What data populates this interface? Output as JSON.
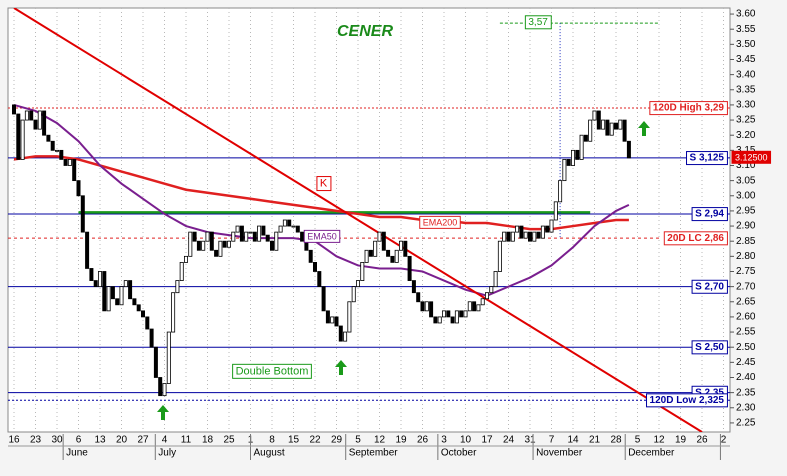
{
  "chart_data": {
    "type": "candlestick",
    "title": "CENER",
    "categories": [
      "16",
      null,
      null,
      null,
      null,
      "23",
      null,
      null,
      null,
      null,
      "30",
      null,
      null,
      null,
      null,
      "6",
      null,
      null,
      null,
      null,
      "13",
      null,
      null,
      null,
      null,
      "20",
      null,
      null,
      null,
      null,
      "27",
      null,
      null,
      null,
      null,
      "4",
      null,
      null,
      null,
      null,
      "11",
      null,
      null,
      null,
      null,
      "18",
      null,
      null,
      null,
      null,
      "25",
      null,
      null,
      null,
      null,
      "1",
      null,
      null,
      null,
      null,
      "8",
      null,
      null,
      null,
      null,
      "15",
      null,
      null,
      null,
      null,
      "22",
      null,
      null,
      null,
      null,
      "29",
      null,
      null,
      null,
      null,
      "5",
      null,
      null,
      null,
      null,
      "12",
      null,
      null,
      null,
      null,
      "19",
      null,
      null,
      null,
      null,
      "26",
      null,
      null,
      null,
      null,
      "3",
      null,
      null,
      null,
      null,
      "10",
      null,
      null,
      null,
      null,
      "17",
      null,
      null,
      null,
      null,
      "24",
      null,
      null,
      null,
      null,
      "31",
      null,
      null,
      null,
      null,
      "7",
      null,
      null,
      null,
      null,
      "14",
      null,
      null,
      null,
      null,
      "21",
      null,
      null,
      null,
      null,
      "28",
      null,
      null,
      null,
      null,
      "5",
      null,
      null,
      null,
      null,
      "12",
      null,
      null,
      null,
      null,
      "19",
      null,
      null,
      null,
      null,
      "26",
      null,
      null,
      null,
      null,
      "2",
      null,
      null,
      null,
      null
    ],
    "months": [
      "June",
      "July",
      "August",
      "September",
      "October",
      "November",
      "December"
    ],
    "open": [
      3.3,
      3.27,
      3.12,
      3.25,
      3.28,
      3.25,
      3.22,
      3.28,
      3.2,
      3.18,
      3.15,
      3.15,
      3.12,
      3.1,
      3.12,
      3.05,
      3.0,
      2.88,
      2.76,
      2.72,
      2.7,
      2.75,
      2.62,
      2.7,
      2.66,
      2.64,
      2.7,
      2.72,
      2.66,
      2.64,
      2.62,
      2.6,
      2.56,
      2.5,
      2.4,
      2.34,
      2.38,
      2.55,
      2.68,
      2.72,
      2.78,
      2.8,
      2.88,
      2.85,
      2.82,
      2.85,
      2.88,
      2.82,
      2.8,
      2.85,
      2.83,
      2.85,
      2.88,
      2.9,
      2.85,
      2.88,
      2.88,
      2.85,
      2.9,
      2.87,
      2.85,
      2.82,
      2.88,
      2.9,
      2.92,
      2.9,
      2.9,
      2.88,
      2.85,
      2.82,
      2.78,
      2.75,
      2.7,
      2.62,
      2.58,
      2.6,
      2.57,
      2.52,
      2.55,
      2.65,
      2.7,
      2.72,
      2.78,
      2.82,
      2.8,
      2.85,
      2.88,
      2.82,
      2.8,
      2.78,
      2.82,
      2.85,
      2.8,
      2.72,
      2.68,
      2.65,
      2.62,
      2.65,
      2.6,
      2.58,
      2.6,
      2.62,
      2.6,
      2.58,
      2.62,
      2.6,
      2.62,
      2.65,
      2.62,
      2.64,
      2.66,
      2.68,
      2.7,
      2.75,
      2.85,
      2.88,
      2.85,
      2.88,
      2.9,
      2.86,
      2.88,
      2.85,
      2.88,
      2.86,
      2.9,
      2.88,
      2.92,
      2.98,
      3.05,
      3.12,
      3.1,
      3.15,
      3.12,
      3.2,
      3.18,
      3.25,
      3.28,
      3.22,
      3.25,
      3.2,
      3.24,
      3.22,
      3.25,
      3.18,
      null,
      null,
      null,
      null,
      null,
      null,
      null,
      null,
      null,
      null,
      null,
      null,
      null,
      null,
      null,
      null,
      null,
      null,
      null,
      null,
      null,
      null,
      null,
      null,
      null,
      null
    ],
    "close": [
      3.27,
      3.12,
      3.25,
      3.28,
      3.25,
      3.22,
      3.28,
      3.2,
      3.18,
      3.15,
      3.15,
      3.12,
      3.1,
      3.12,
      3.05,
      3.0,
      2.88,
      2.76,
      2.72,
      2.7,
      2.75,
      2.62,
      2.7,
      2.66,
      2.64,
      2.7,
      2.72,
      2.66,
      2.64,
      2.62,
      2.6,
      2.56,
      2.5,
      2.4,
      2.34,
      2.38,
      2.55,
      2.68,
      2.72,
      2.78,
      2.8,
      2.88,
      2.85,
      2.82,
      2.85,
      2.88,
      2.82,
      2.8,
      2.85,
      2.83,
      2.85,
      2.88,
      2.9,
      2.85,
      2.88,
      2.88,
      2.85,
      2.9,
      2.87,
      2.85,
      2.82,
      2.88,
      2.9,
      2.92,
      2.9,
      2.9,
      2.88,
      2.85,
      2.82,
      2.78,
      2.75,
      2.7,
      2.62,
      2.58,
      2.6,
      2.57,
      2.52,
      2.55,
      2.65,
      2.7,
      2.72,
      2.78,
      2.82,
      2.8,
      2.85,
      2.88,
      2.82,
      2.8,
      2.78,
      2.82,
      2.85,
      2.8,
      2.72,
      2.68,
      2.65,
      2.62,
      2.65,
      2.6,
      2.58,
      2.6,
      2.62,
      2.6,
      2.58,
      2.62,
      2.6,
      2.62,
      2.65,
      2.62,
      2.64,
      2.66,
      2.68,
      2.7,
      2.75,
      2.85,
      2.88,
      2.85,
      2.88,
      2.9,
      2.86,
      2.88,
      2.85,
      2.88,
      2.86,
      2.9,
      2.88,
      2.92,
      2.98,
      3.05,
      3.12,
      3.1,
      3.15,
      3.12,
      3.2,
      3.18,
      3.25,
      3.28,
      3.22,
      3.25,
      3.2,
      3.24,
      3.22,
      3.25,
      3.18,
      3.125,
      null,
      null,
      null,
      null,
      null,
      null,
      null,
      null,
      null,
      null,
      null,
      null,
      null,
      null,
      null,
      null,
      null,
      null,
      null,
      null,
      null,
      null,
      null,
      null,
      null,
      null
    ],
    "series": [
      {
        "name": "EMA200",
        "color": "#e02020",
        "x": [
          0,
          5,
          10,
          15,
          20,
          25,
          30,
          35,
          40,
          45,
          50,
          55,
          60,
          65,
          70,
          75,
          80,
          85,
          90,
          95,
          100,
          105,
          110,
          115,
          120,
          125,
          130,
          135,
          140,
          143
        ],
        "values": [
          3.12,
          3.13,
          3.13,
          3.12,
          3.1,
          3.08,
          3.06,
          3.04,
          3.02,
          3.01,
          3.0,
          2.99,
          2.98,
          2.97,
          2.96,
          2.95,
          2.94,
          2.93,
          2.93,
          2.92,
          2.92,
          2.91,
          2.91,
          2.9,
          2.89,
          2.89,
          2.9,
          2.91,
          2.92,
          2.92
        ]
      },
      {
        "name": "EMA50",
        "color": "#7a1f8f",
        "x": [
          0,
          5,
          10,
          15,
          20,
          25,
          30,
          35,
          40,
          45,
          50,
          55,
          60,
          65,
          70,
          75,
          80,
          85,
          90,
          95,
          100,
          105,
          110,
          115,
          120,
          125,
          130,
          135,
          140,
          143
        ],
        "values": [
          3.3,
          3.28,
          3.24,
          3.18,
          3.1,
          3.04,
          2.99,
          2.94,
          2.9,
          2.88,
          2.87,
          2.86,
          2.86,
          2.86,
          2.85,
          2.8,
          2.77,
          2.76,
          2.76,
          2.75,
          2.72,
          2.69,
          2.67,
          2.7,
          2.73,
          2.77,
          2.83,
          2.9,
          2.95,
          2.97
        ]
      }
    ],
    "trend_line": {
      "color": "#e00000",
      "x": [
        0,
        160
      ],
      "values": [
        3.62,
        2.22
      ]
    },
    "breakout_line": {
      "color": "#1a9a1a",
      "value": 2.945,
      "x": [
        15,
        134
      ]
    },
    "peak": {
      "value": 3.57,
      "label": "3,57",
      "x": [
        113,
        150
      ],
      "x_vertical": 127,
      "color": "#1a9a1a"
    },
    "levels": [
      {
        "value": 3.125,
        "label": "S 3,125"
      },
      {
        "value": 2.94,
        "label": "S 2,94"
      },
      {
        "value": 2.7,
        "label": "S 2,70"
      },
      {
        "value": 2.5,
        "label": "S 2,50"
      },
      {
        "value": 2.35,
        "label": "S 2,35"
      }
    ],
    "levels_color": "#0000a0",
    "high_120d": {
      "value": 3.29,
      "label": "120D High 3,29",
      "color": "#e02020"
    },
    "lc_20d": {
      "value": 2.86,
      "label": "20D LC 2,86",
      "color": "#e02020"
    },
    "low_120d": {
      "value": 2.325,
      "label": "120D Low 2,325",
      "color": "#0000a0"
    },
    "last_price": {
      "value": 3.125,
      "label": "3.12500",
      "color": "#e00000"
    },
    "annotations": [
      {
        "text": "K",
        "x": 72,
        "value": 3.04,
        "color": "#e00000"
      },
      {
        "text": "Double Bottom",
        "x": 60,
        "value": 2.42,
        "color": "#1a9a1a"
      }
    ],
    "ylim": [
      2.22,
      3.62
    ],
    "yticks": [
      2.25,
      {
        "value": 2.3,
        "label": "2.30"
      },
      2.35,
      {
        "value": 2.4,
        "label": "2.40"
      },
      2.45,
      {
        "value": 2.5,
        "label": "2.50"
      },
      2.55,
      {
        "value": 2.6,
        "label": "2.60"
      },
      2.65,
      {
        "value": 2.7,
        "label": "2.70"
      },
      2.75,
      {
        "value": 2.8,
        "label": "2.80"
      },
      2.85,
      {
        "value": 2.9,
        "label": "2.90"
      },
      2.95,
      {
        "value": 3,
        "label": "3.00"
      },
      3.05,
      {
        "value": 3.1,
        "label": "3.10"
      },
      3.15,
      {
        "value": 3.2,
        "label": "3.20"
      },
      3.25,
      {
        "value": 3.3,
        "label": "3.30"
      },
      3.35,
      {
        "value": 3.4,
        "label": "3.40"
      },
      3.45,
      {
        "value": 3.5,
        "label": "3.50"
      },
      3.55,
      {
        "value": 3.6,
        "label": "3.60"
      }
    ],
    "grid": true
  }
}
